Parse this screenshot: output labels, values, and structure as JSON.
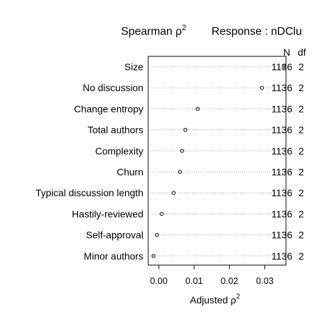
{
  "chart_data": {
    "type": "scatter",
    "title": {
      "main": "Spearman ",
      "rho": "ρ",
      "sup": "2",
      "response": "Response : nDClu"
    },
    "xlabel": {
      "main": "Adjusted ",
      "rho": "ρ",
      "sup": "2"
    },
    "xlim": [
      -0.003,
      0.036
    ],
    "xticks": [
      {
        "value": 0.0,
        "label": "0.00"
      },
      {
        "value": 0.01,
        "label": "0.01"
      },
      {
        "value": 0.02,
        "label": "0.02"
      },
      {
        "value": 0.03,
        "label": "0.03"
      }
    ],
    "grid": "dotted horizontal lines",
    "column_headers": {
      "n": "N",
      "df": "df"
    },
    "points": [
      {
        "label": "Size",
        "value": 0.0355,
        "n": "1136",
        "df": "2"
      },
      {
        "label": "No discussion",
        "value": 0.0292,
        "n": "1136",
        "df": "2"
      },
      {
        "label": "Change entropy",
        "value": 0.011,
        "n": "1136",
        "df": "2"
      },
      {
        "label": "Total authors",
        "value": 0.0075,
        "n": "1136",
        "df": "2"
      },
      {
        "label": "Complexity",
        "value": 0.0066,
        "n": "1136",
        "df": "2"
      },
      {
        "label": "Churn",
        "value": 0.006,
        "n": "1136",
        "df": "2"
      },
      {
        "label": "Typical discussion length",
        "value": 0.0042,
        "n": "1136",
        "df": "2"
      },
      {
        "label": "Hastily-reviewed",
        "value": 0.0008,
        "n": "1136",
        "df": "2"
      },
      {
        "label": "Self-approval",
        "value": -0.0005,
        "n": "1136",
        "df": "2"
      },
      {
        "label": "Minor authors",
        "value": -0.0015,
        "n": "1136",
        "df": "2"
      }
    ]
  }
}
